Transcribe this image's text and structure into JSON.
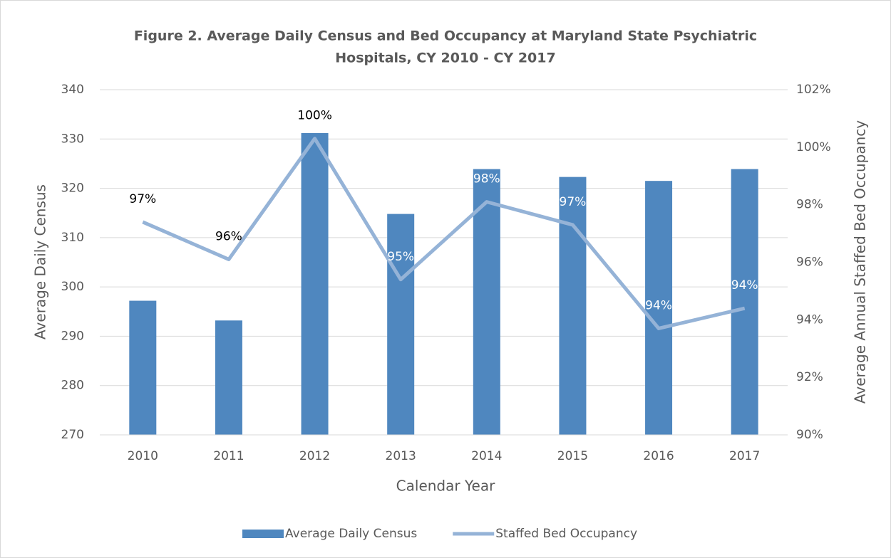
{
  "chart_data": {
    "type": "bar_line",
    "title": [
      "Figure 2. Average Daily Census and Bed Occupancy at Maryland State Psychiatric",
      "Hospitals, CY 2010 - CY 2017"
    ],
    "x_label": "Calendar Year",
    "y_label": "Average Daily Census",
    "y2_label": "Average Annual Staffed Bed Occupancy",
    "categories": [
      "2010",
      "2011",
      "2012",
      "2013",
      "2014",
      "2015",
      "2016",
      "2017"
    ],
    "series": [
      {
        "name": "Average Daily Census",
        "type": "bar",
        "color": "#4f87bf",
        "values": [
          297.2,
          293.2,
          331.2,
          314.8,
          323.9,
          322.3,
          321.5,
          323.9
        ]
      },
      {
        "name": "Staffed Bed Occupancy",
        "type": "line",
        "axis": "y2",
        "color": "#95b3d7",
        "values": [
          97.4,
          96.1,
          100.3,
          95.4,
          98.1,
          97.3,
          93.7,
          94.4
        ],
        "value_labels": [
          "97%",
          "96%",
          "100%",
          "95%",
          "98%",
          "97%",
          "94%",
          "94%"
        ],
        "value_label_colors": [
          "#000000",
          "#000000",
          "#000000",
          "#ffffff",
          "#ffffff",
          "#ffffff",
          "#ffffff",
          "#ffffff"
        ]
      }
    ],
    "ylim": [
      270,
      340
    ],
    "yticks": [
      270,
      280,
      290,
      300,
      310,
      320,
      330,
      340
    ],
    "y2lim": [
      90,
      102
    ],
    "y2ticks": [
      {
        "value": 90,
        "label": "90%"
      },
      {
        "value": 92,
        "label": "92%"
      },
      {
        "value": 94,
        "label": "94%"
      },
      {
        "value": 96,
        "label": "96%"
      },
      {
        "value": 98,
        "label": "98%"
      },
      {
        "value": 100,
        "label": "100%"
      },
      {
        "value": 102,
        "label": "102%"
      }
    ],
    "grid": true,
    "legend": "bottom"
  }
}
